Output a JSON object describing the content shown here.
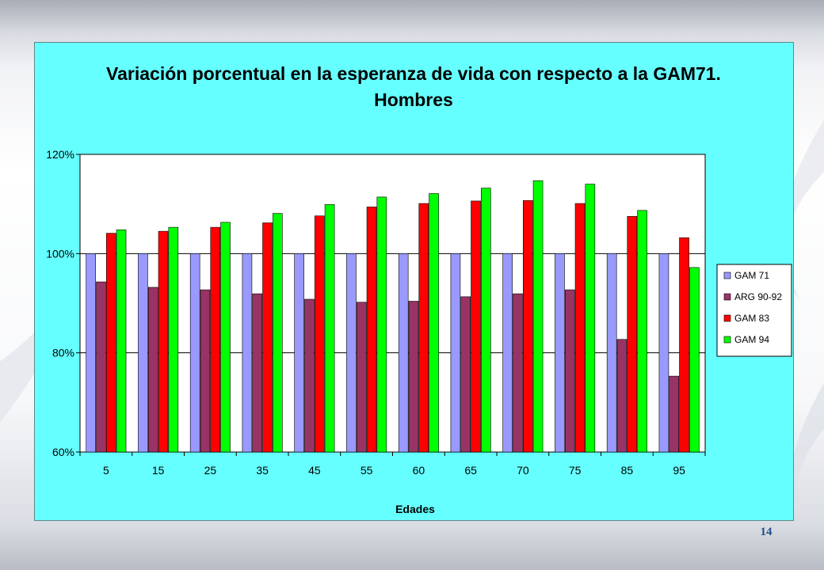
{
  "page": {
    "number": "14"
  },
  "colors": {
    "panel_bg": "#66ffff",
    "plot_bg": "#ffffff"
  },
  "chart_data": {
    "type": "bar",
    "title": "Variación porcentual en la esperanza de vida con respecto a la GAM71.",
    "subtitle": "Hombres",
    "xlabel": "Edades",
    "ylabel": "",
    "ylim": [
      60,
      120
    ],
    "y_ticks": [
      60,
      80,
      100,
      120
    ],
    "y_tick_labels": [
      "60%",
      "80%",
      "100%",
      "120%"
    ],
    "grid": "horizontal",
    "legend_position": "right",
    "categories": [
      "5",
      "15",
      "25",
      "35",
      "45",
      "55",
      "60",
      "65",
      "70",
      "75",
      "85",
      "95"
    ],
    "series": [
      {
        "name": "GAM 71",
        "color": "#9999ff",
        "values": [
          100,
          100,
          100,
          100,
          100,
          100,
          100,
          100,
          100,
          100,
          100,
          100
        ]
      },
      {
        "name": "ARG 90-92",
        "color": "#993366",
        "values": [
          94.3,
          93.2,
          92.7,
          91.9,
          90.8,
          90.2,
          90.4,
          91.3,
          91.9,
          92.7,
          82.7,
          75.3
        ]
      },
      {
        "name": "GAM 83",
        "color": "#ff0000",
        "values": [
          104.1,
          104.5,
          105.3,
          106.2,
          107.6,
          109.4,
          110.1,
          110.6,
          110.7,
          110.1,
          107.5,
          103.2
        ]
      },
      {
        "name": "GAM 94",
        "color": "#00ff00",
        "values": [
          104.8,
          105.3,
          106.3,
          108.1,
          109.9,
          111.4,
          112.1,
          113.2,
          114.7,
          114.0,
          108.7,
          97.2
        ]
      }
    ]
  }
}
